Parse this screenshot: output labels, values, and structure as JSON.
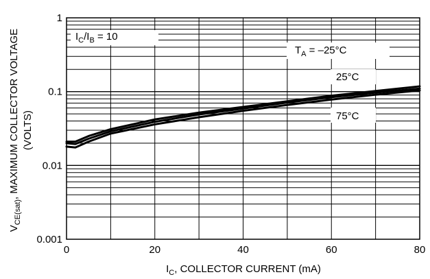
{
  "chart_data": {
    "type": "line",
    "xlabel_main": "I",
    "xlabel_sub": "C",
    "xlabel_rest": ", COLLECTOR CURRENT (mA)",
    "ylabel_main": "V",
    "ylabel_sub": "CE(sat)",
    "ylabel_rest": ", MAXIMUM COLLECTOR VOLTAGE",
    "ylabel_line2": "(VOLTS)",
    "xlim": [
      0,
      80
    ],
    "ylim": [
      0.001,
      1
    ],
    "yscale": "log",
    "grid": true,
    "x_ticks": [
      "0",
      "20",
      "40",
      "60",
      "80"
    ],
    "y_ticks": [
      "0.001",
      "0.01",
      "0.1",
      "1"
    ],
    "condition": {
      "a": "I",
      "a_sub": "C",
      "slash": "/I",
      "b_sub": "B",
      "rest": " = 10"
    },
    "series": [
      {
        "name_main": "T",
        "name_sub": "A",
        "name_rest": " = –25°C",
        "x": [
          0,
          2,
          5,
          10,
          20,
          30,
          40,
          50,
          60,
          70,
          80
        ],
        "y": [
          0.021,
          0.021,
          0.025,
          0.031,
          0.042,
          0.052,
          0.062,
          0.074,
          0.088,
          0.102,
          0.118
        ]
      },
      {
        "name": "25°C",
        "x": [
          0,
          2,
          5,
          10,
          20,
          30,
          40,
          50,
          60,
          70,
          80
        ],
        "y": [
          0.02,
          0.0195,
          0.023,
          0.029,
          0.039,
          0.049,
          0.059,
          0.071,
          0.084,
          0.097,
          0.11
        ]
      },
      {
        "name": "75°C",
        "x": [
          0,
          2,
          5,
          10,
          20,
          30,
          40,
          50,
          60,
          70,
          80
        ],
        "y": [
          0.018,
          0.0175,
          0.021,
          0.027,
          0.036,
          0.045,
          0.055,
          0.066,
          0.078,
          0.091,
          0.104
        ]
      }
    ],
    "colors": {
      "line": "#000000",
      "grid": "#000000",
      "background": "#ffffff"
    }
  }
}
